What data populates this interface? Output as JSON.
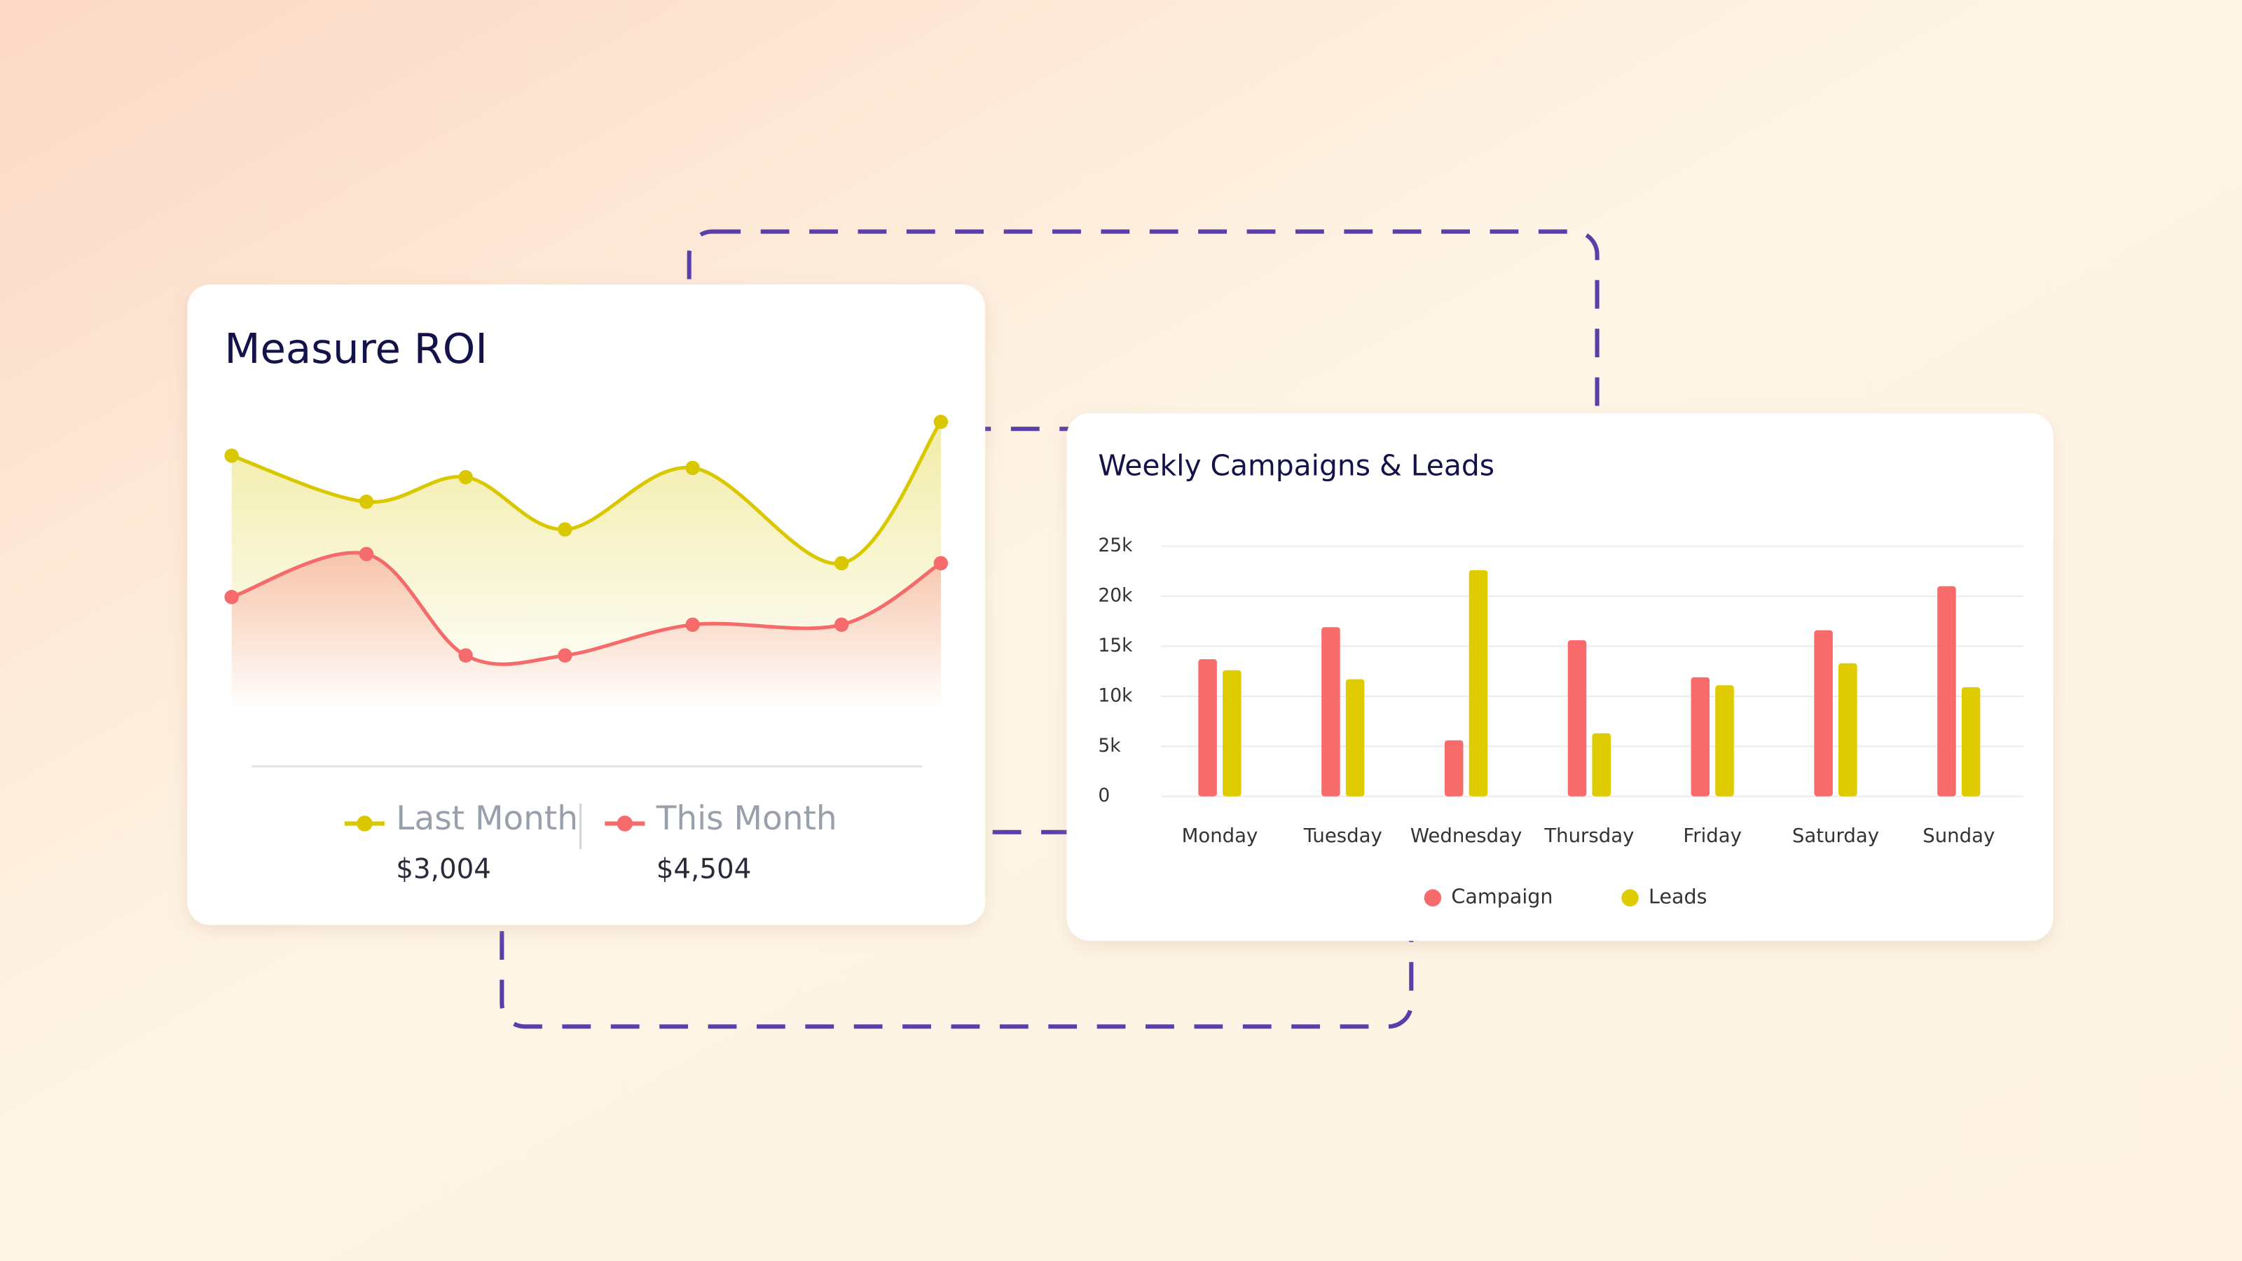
{
  "chart_data": [
    {
      "type": "area",
      "title": "Measure ROI",
      "x": [
        0,
        19,
        33,
        47,
        65,
        86,
        100
      ],
      "xlim": [
        0,
        100
      ],
      "ylim": [
        0,
        100
      ],
      "series": [
        {
          "name": "Last Month",
          "color": "#d9c800",
          "values": [
            82,
            67,
            75,
            58,
            78,
            47,
            93
          ],
          "summary": "$3,004"
        },
        {
          "name": "This Month",
          "color": "#f56b6b",
          "values": [
            36,
            50,
            17,
            17,
            27,
            27,
            47
          ],
          "summary": "$4,504"
        }
      ]
    },
    {
      "type": "bar",
      "title": "Weekly Campaigns & Leads",
      "categories": [
        "Monday",
        "Tuesday",
        "Wednesday",
        "Thursday",
        "Friday",
        "Saturday",
        "Sunday"
      ],
      "series": [
        {
          "name": "Campaign",
          "color": "#f76b6b",
          "values": [
            13700,
            16900,
            5600,
            15600,
            11900,
            16600,
            21000
          ]
        },
        {
          "name": "Leads",
          "color": "#dfcc00",
          "values": [
            12600,
            11700,
            22600,
            6300,
            11100,
            13300,
            10900
          ]
        }
      ],
      "ylim": [
        0,
        25000
      ],
      "yticks": [
        0,
        {
          "value": 5000,
          "label": "5k"
        },
        {
          "value": 10000,
          "label": "10k"
        },
        {
          "value": 15000,
          "label": "15k"
        },
        {
          "value": 20000,
          "label": "20k"
        },
        {
          "value": 25000,
          "label": "25k"
        }
      ],
      "grid": true,
      "legend": "bottom"
    }
  ]
}
